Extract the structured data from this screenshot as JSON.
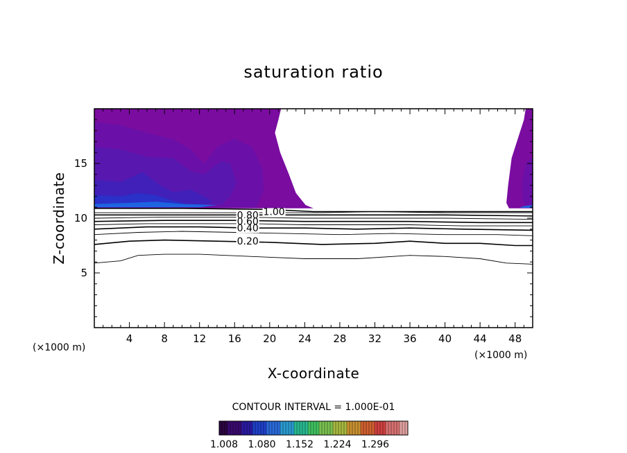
{
  "chart_data": {
    "type": "contour",
    "title": "saturation ratio",
    "xlabel": "X-coordinate",
    "ylabel": "Z-coordinate",
    "x_unit_left": "(×1000 m)",
    "x_unit_right": "(×1000 m)",
    "xlim": [
      0,
      50
    ],
    "ylim": [
      0,
      20
    ],
    "x_ticks": [
      4,
      8,
      12,
      16,
      20,
      24,
      28,
      32,
      36,
      40,
      44,
      48
    ],
    "y_ticks": [
      5,
      10,
      15
    ],
    "contour_interval_text": "CONTOUR INTERVAL = 1.000E-01",
    "contour_labels": [
      {
        "text": "1.00",
        "x": 20.5,
        "z": 10.6
      },
      {
        "text": "0.80",
        "x": 17.5,
        "z": 10.3
      },
      {
        "text": "0.60",
        "x": 17.5,
        "z": 9.7
      },
      {
        "text": "0.40",
        "x": 17.5,
        "z": 9.1
      },
      {
        "text": "0.20",
        "x": 17.5,
        "z": 7.9
      }
    ],
    "contour_lines": [
      {
        "level": 0.1,
        "points": [
          [
            0,
            5.9
          ],
          [
            3,
            6.1
          ],
          [
            5,
            6.6
          ],
          [
            8,
            6.7
          ],
          [
            12,
            6.7
          ],
          [
            18,
            6.5
          ],
          [
            24,
            6.3
          ],
          [
            30,
            6.3
          ],
          [
            36,
            6.6
          ],
          [
            40,
            6.5
          ],
          [
            44,
            6.3
          ],
          [
            47,
            5.9
          ],
          [
            50,
            5.8
          ]
        ]
      },
      {
        "level": 0.2,
        "points": [
          [
            0,
            7.6
          ],
          [
            4,
            7.9
          ],
          [
            8,
            8.0
          ],
          [
            14,
            7.9
          ],
          [
            20,
            7.8
          ],
          [
            26,
            7.6
          ],
          [
            32,
            7.7
          ],
          [
            36,
            7.9
          ],
          [
            40,
            7.7
          ],
          [
            44,
            7.7
          ],
          [
            48,
            7.5
          ],
          [
            50,
            7.5
          ]
        ]
      },
      {
        "level": 0.3,
        "points": [
          [
            0,
            8.5
          ],
          [
            5,
            8.7
          ],
          [
            10,
            8.8
          ],
          [
            16,
            8.7
          ],
          [
            22,
            8.6
          ],
          [
            28,
            8.5
          ],
          [
            34,
            8.6
          ],
          [
            40,
            8.5
          ],
          [
            46,
            8.5
          ],
          [
            50,
            8.4
          ]
        ]
      },
      {
        "level": 0.4,
        "points": [
          [
            0,
            9.0
          ],
          [
            6,
            9.2
          ],
          [
            12,
            9.2
          ],
          [
            18,
            9.1
          ],
          [
            24,
            9.1
          ],
          [
            30,
            9.0
          ],
          [
            36,
            9.1
          ],
          [
            42,
            9.0
          ],
          [
            50,
            8.9
          ]
        ]
      },
      {
        "level": 0.5,
        "points": [
          [
            0,
            9.4
          ],
          [
            6,
            9.5
          ],
          [
            12,
            9.5
          ],
          [
            18,
            9.5
          ],
          [
            24,
            9.4
          ],
          [
            30,
            9.4
          ],
          [
            36,
            9.4
          ],
          [
            42,
            9.3
          ],
          [
            50,
            9.3
          ]
        ]
      },
      {
        "level": 0.6,
        "points": [
          [
            0,
            9.7
          ],
          [
            8,
            9.8
          ],
          [
            16,
            9.8
          ],
          [
            24,
            9.7
          ],
          [
            30,
            9.7
          ],
          [
            36,
            9.7
          ],
          [
            44,
            9.6
          ],
          [
            50,
            9.6
          ]
        ]
      },
      {
        "level": 0.7,
        "points": [
          [
            0,
            10.0
          ],
          [
            8,
            10.1
          ],
          [
            16,
            10.1
          ],
          [
            24,
            10.0
          ],
          [
            32,
            10.0
          ],
          [
            40,
            10.0
          ],
          [
            50,
            9.9
          ]
        ]
      },
      {
        "level": 0.8,
        "points": [
          [
            0,
            10.3
          ],
          [
            8,
            10.3
          ],
          [
            16,
            10.3
          ],
          [
            24,
            10.3
          ],
          [
            32,
            10.3
          ],
          [
            40,
            10.3
          ],
          [
            50,
            10.2
          ]
        ]
      },
      {
        "level": 0.9,
        "points": [
          [
            0,
            10.5
          ],
          [
            10,
            10.5
          ],
          [
            20,
            10.5
          ],
          [
            26,
            10.5
          ],
          [
            32,
            10.6
          ],
          [
            40,
            10.5
          ],
          [
            50,
            10.5
          ]
        ]
      },
      {
        "level": 1.0,
        "points": [
          [
            0,
            10.9
          ],
          [
            10,
            10.9
          ],
          [
            20,
            10.8
          ],
          [
            25,
            10.6
          ],
          [
            30,
            10.6
          ],
          [
            36,
            10.6
          ],
          [
            42,
            10.6
          ],
          [
            47,
            10.6
          ],
          [
            50,
            10.6
          ]
        ]
      }
    ],
    "shaded_region_boundary_left": [
      [
        0,
        20
      ],
      [
        21.3,
        20
      ],
      [
        21.0,
        19.0
      ],
      [
        20.6,
        17.8
      ],
      [
        21.2,
        16.0
      ],
      [
        22.2,
        14.0
      ],
      [
        23.0,
        12.3
      ],
      [
        24.1,
        11.2
      ],
      [
        25.0,
        10.9
      ],
      [
        0,
        10.9
      ]
    ],
    "shaded_region_boundary_right": [
      [
        50,
        20
      ],
      [
        49.2,
        20
      ],
      [
        49.0,
        19.0
      ],
      [
        48.4,
        17.5
      ],
      [
        47.6,
        15.5
      ],
      [
        47.2,
        13.0
      ],
      [
        47.0,
        11.4
      ],
      [
        47.3,
        10.9
      ],
      [
        50,
        10.9
      ]
    ],
    "colorbar": {
      "tick_labels": [
        "1.008",
        "1.080",
        "1.152",
        "1.224",
        "1.296"
      ],
      "colors": [
        "#2a0540",
        "#3a0a6e",
        "#2a1aa0",
        "#1f40c8",
        "#2a6ad8",
        "#2a9ad0",
        "#28b890",
        "#40c060",
        "#7ac050",
        "#a8b840",
        "#c89030",
        "#d06030",
        "#d04040",
        "#d87070",
        "#e0a0a0"
      ]
    },
    "fill_colors": {
      "outer": "#7a0ca0",
      "mid": "#6a10a8",
      "inner": "#5818b0",
      "deep": "#4020b8",
      "deeper": "#2a30c8",
      "edge": "#1e64e0"
    }
  }
}
